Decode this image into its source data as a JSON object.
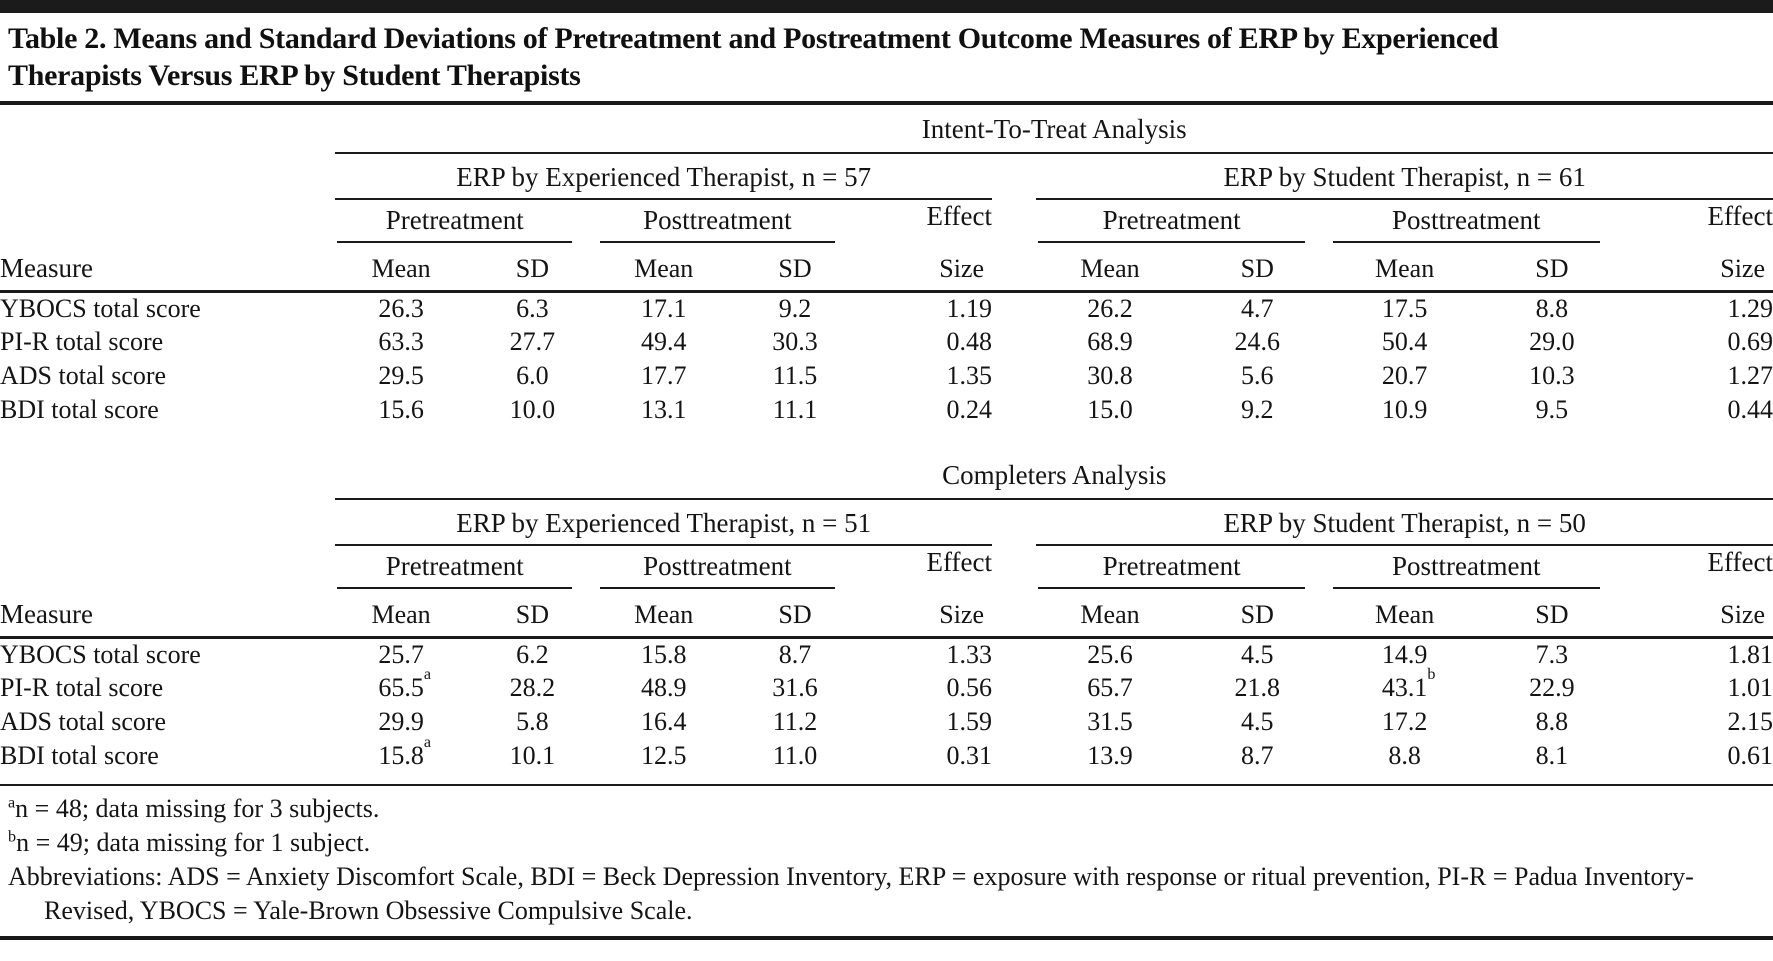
{
  "page": {
    "title": "Table 2. Means and Standard Deviations of Pretreatment and Postreatment Outcome Measures of ERP by Experienced Therapists Versus ERP by Student Therapists"
  },
  "columns": {
    "measure": "Measure",
    "pretreatment": "Pretreatment",
    "posttreatment": "Posttreatment",
    "mean": "Mean",
    "sd": "SD",
    "effect": "Effect",
    "size": "Size"
  },
  "sections": [
    {
      "label": "Intent-To-Treat Analysis",
      "group_experienced": "ERP by Experienced Therapist, n = 57",
      "group_student": "ERP by Student Therapist, n = 61",
      "rows": [
        {
          "measure": "YBOCS total score",
          "values": [
            "26.3",
            "6.3",
            "17.1",
            "9.2",
            "1.19",
            "26.2",
            "4.7",
            "17.5",
            "8.8",
            "1.29"
          ]
        },
        {
          "measure": "PI-R total score",
          "values": [
            "63.3",
            "27.7",
            "49.4",
            "30.3",
            "0.48",
            "68.9",
            "24.6",
            "50.4",
            "29.0",
            "0.69"
          ]
        },
        {
          "measure": "ADS total score",
          "values": [
            "29.5",
            "6.0",
            "17.7",
            "11.5",
            "1.35",
            "30.8",
            "5.6",
            "20.7",
            "10.3",
            "1.27"
          ]
        },
        {
          "measure": "BDI total score",
          "values": [
            "15.6",
            "10.0",
            "13.1",
            "11.1",
            "0.24",
            "15.0",
            "9.2",
            "10.9",
            "9.5",
            "0.44"
          ]
        }
      ]
    },
    {
      "label": "Completers Analysis",
      "group_experienced": "ERP by Experienced Therapist, n = 51",
      "group_student": "ERP by Student Therapist, n = 50",
      "rows": [
        {
          "measure": "YBOCS total score",
          "values": [
            "25.7",
            "6.2",
            "15.8",
            "8.7",
            "1.33",
            "25.6",
            "4.5",
            "14.9",
            "7.3",
            "1.81"
          ]
        },
        {
          "measure": "PI-R total score",
          "values": [
            "65.5",
            "28.2",
            "48.9",
            "31.6",
            "0.56",
            "65.7",
            "21.8",
            "43.1",
            "22.9",
            "1.01"
          ],
          "marks": {
            "0": "a",
            "7": "b"
          }
        },
        {
          "measure": "ADS total score",
          "values": [
            "29.9",
            "5.8",
            "16.4",
            "11.2",
            "1.59",
            "31.5",
            "4.5",
            "17.2",
            "8.8",
            "2.15"
          ]
        },
        {
          "measure": "BDI total score",
          "values": [
            "15.8",
            "10.1",
            "12.5",
            "11.0",
            "0.31",
            "13.9",
            "8.7",
            "8.8",
            "8.1",
            "0.61"
          ],
          "marks": {
            "0": "a"
          }
        }
      ]
    }
  ],
  "footnotes": [
    {
      "mark": "a",
      "text": "n = 48; data missing for 3 subjects."
    },
    {
      "mark": "b",
      "text": "n = 49; data missing for 1 subject."
    },
    {
      "text": "Abbreviations: ADS = Anxiety Discomfort Scale, BDI = Beck Depression Inventory, ERP = exposure with response or ritual prevention, PI-R = Padua Inventory-Revised, YBOCS = Yale-Brown Obsessive Compulsive Scale."
    }
  ]
}
